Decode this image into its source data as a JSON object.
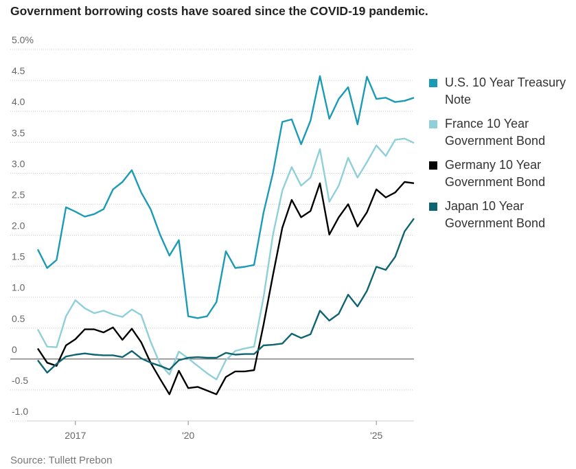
{
  "chart_data": {
    "type": "line",
    "title": "Government borrowing costs have soared since the COVID-19 pandemic.",
    "source": "Source: Tullett Prebon",
    "categories": [
      null,
      null,
      null,
      null,
      "2017",
      null,
      null,
      null,
      null,
      null,
      null,
      null,
      null,
      null,
      null,
      null,
      "'20",
      null,
      null,
      null,
      null,
      null,
      null,
      null,
      null,
      null,
      null,
      null,
      null,
      null,
      null,
      null,
      null,
      null,
      null,
      null,
      "'25",
      null,
      null,
      null,
      null
    ],
    "ylim": [
      -1.0,
      5.0
    ],
    "yticks": [
      {
        "value": -1.0,
        "label": "-1.0"
      },
      {
        "value": -0.5,
        "label": "-0.5"
      },
      0,
      {
        "value": 0.5,
        "label": "0.5"
      },
      {
        "value": 1.0,
        "label": "1.0"
      },
      {
        "value": 1.5,
        "label": "1.5"
      },
      {
        "value": 2.0,
        "label": "2.0"
      },
      {
        "value": 2.5,
        "label": "2.5"
      },
      {
        "value": 3.0,
        "label": "3.0"
      },
      {
        "value": 3.5,
        "label": "3.5"
      },
      {
        "value": 4.0,
        "label": "4.0"
      },
      {
        "value": 4.5,
        "label": "4.5"
      },
      {
        "value": 5.0,
        "label": "5.0%"
      }
    ],
    "grid": true,
    "legend": "right",
    "series": [
      {
        "name": "U.S. 10 Year Treasury Note",
        "color": "#1a9bb5",
        "values": [
          1.77,
          1.47,
          1.6,
          2.45,
          2.38,
          2.3,
          2.34,
          2.42,
          2.74,
          2.86,
          3.05,
          2.69,
          2.42,
          2.01,
          1.67,
          1.92,
          0.69,
          0.66,
          0.69,
          0.92,
          1.74,
          1.47,
          1.49,
          1.52,
          2.36,
          3.0,
          3.83,
          3.87,
          3.47,
          3.85,
          4.57,
          3.88,
          4.2,
          4.39,
          3.79,
          4.56,
          4.2,
          4.22,
          4.15,
          4.17,
          4.22
        ]
      },
      {
        "name": "France 10 Year Government Bond",
        "color": "#8ecfd9",
        "values": [
          0.48,
          0.2,
          0.19,
          0.69,
          0.95,
          0.82,
          0.74,
          0.78,
          0.72,
          0.68,
          0.8,
          0.71,
          0.28,
          -0.08,
          -0.25,
          0.12,
          0.01,
          -0.11,
          -0.23,
          -0.33,
          -0.02,
          0.13,
          0.17,
          0.2,
          0.99,
          2.0,
          2.72,
          3.1,
          2.8,
          2.93,
          3.39,
          2.54,
          2.8,
          3.25,
          2.93,
          3.18,
          3.45,
          3.28,
          3.54,
          3.56,
          3.49
        ]
      },
      {
        "name": "Germany 10 Year Government Bond",
        "color": "#000000",
        "values": [
          0.17,
          -0.06,
          -0.11,
          0.22,
          0.32,
          0.48,
          0.48,
          0.43,
          0.51,
          0.31,
          0.49,
          0.27,
          -0.06,
          -0.32,
          -0.57,
          -0.19,
          -0.47,
          -0.45,
          -0.51,
          -0.57,
          -0.29,
          -0.2,
          -0.2,
          -0.18,
          0.55,
          1.35,
          2.12,
          2.57,
          2.29,
          2.39,
          2.84,
          2.01,
          2.29,
          2.5,
          2.14,
          2.37,
          2.74,
          2.61,
          2.69,
          2.86,
          2.84
        ]
      },
      {
        "name": "Japan 10 Year Government Bond",
        "color": "#0e6470",
        "values": [
          -0.02,
          -0.22,
          -0.08,
          0.04,
          0.07,
          0.09,
          0.07,
          0.06,
          0.06,
          0.03,
          0.13,
          0.01,
          -0.06,
          -0.11,
          -0.17,
          -0.02,
          0.02,
          0.03,
          0.02,
          0.02,
          0.1,
          0.07,
          0.08,
          0.08,
          0.22,
          0.23,
          0.25,
          0.41,
          0.34,
          0.4,
          0.78,
          0.62,
          0.73,
          1.04,
          0.85,
          1.1,
          1.49,
          1.44,
          1.65,
          2.06,
          2.27
        ]
      }
    ]
  }
}
